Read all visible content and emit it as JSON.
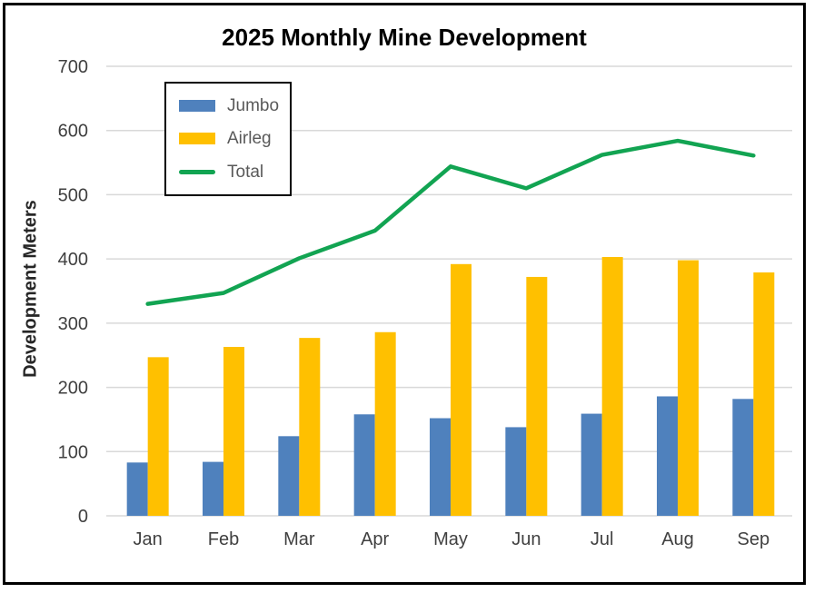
{
  "frame": {
    "background": "#ffffff",
    "border_color": "#000000"
  },
  "chart_data": {
    "type": "combo",
    "title": "2025 Monthly Mine Development",
    "xlabel": "",
    "ylabel": "Development Meters",
    "categories": [
      "Jan",
      "Feb",
      "Mar",
      "Apr",
      "May",
      "Jun",
      "Jul",
      "Aug",
      "Sep"
    ],
    "y_axis": {
      "min": 0,
      "max": 700,
      "step": 100,
      "tick_labels": [
        "0",
        "100",
        "200",
        "300",
        "400",
        "500",
        "600",
        "700"
      ]
    },
    "grid": true,
    "legend_position": "inside-top-left",
    "series": [
      {
        "name": "Jumbo",
        "type": "bar",
        "color": "#4F81BD",
        "values": [
          83,
          84,
          124,
          158,
          152,
          138,
          159,
          186,
          182
        ]
      },
      {
        "name": "Airleg",
        "type": "bar",
        "color": "#FFC000",
        "values": [
          247,
          263,
          277,
          286,
          392,
          372,
          403,
          398,
          379
        ]
      },
      {
        "name": "Total",
        "type": "line",
        "color": "#12A452",
        "values": [
          330,
          347,
          401,
          444,
          544,
          510,
          562,
          584,
          561
        ]
      }
    ],
    "colors": {
      "gridline": "#D9D9D9",
      "tick_text": "#404040",
      "category_text": "#404040",
      "legend_text": "#595959",
      "title_text": "#000000",
      "axis_title_text": "#262626"
    }
  }
}
